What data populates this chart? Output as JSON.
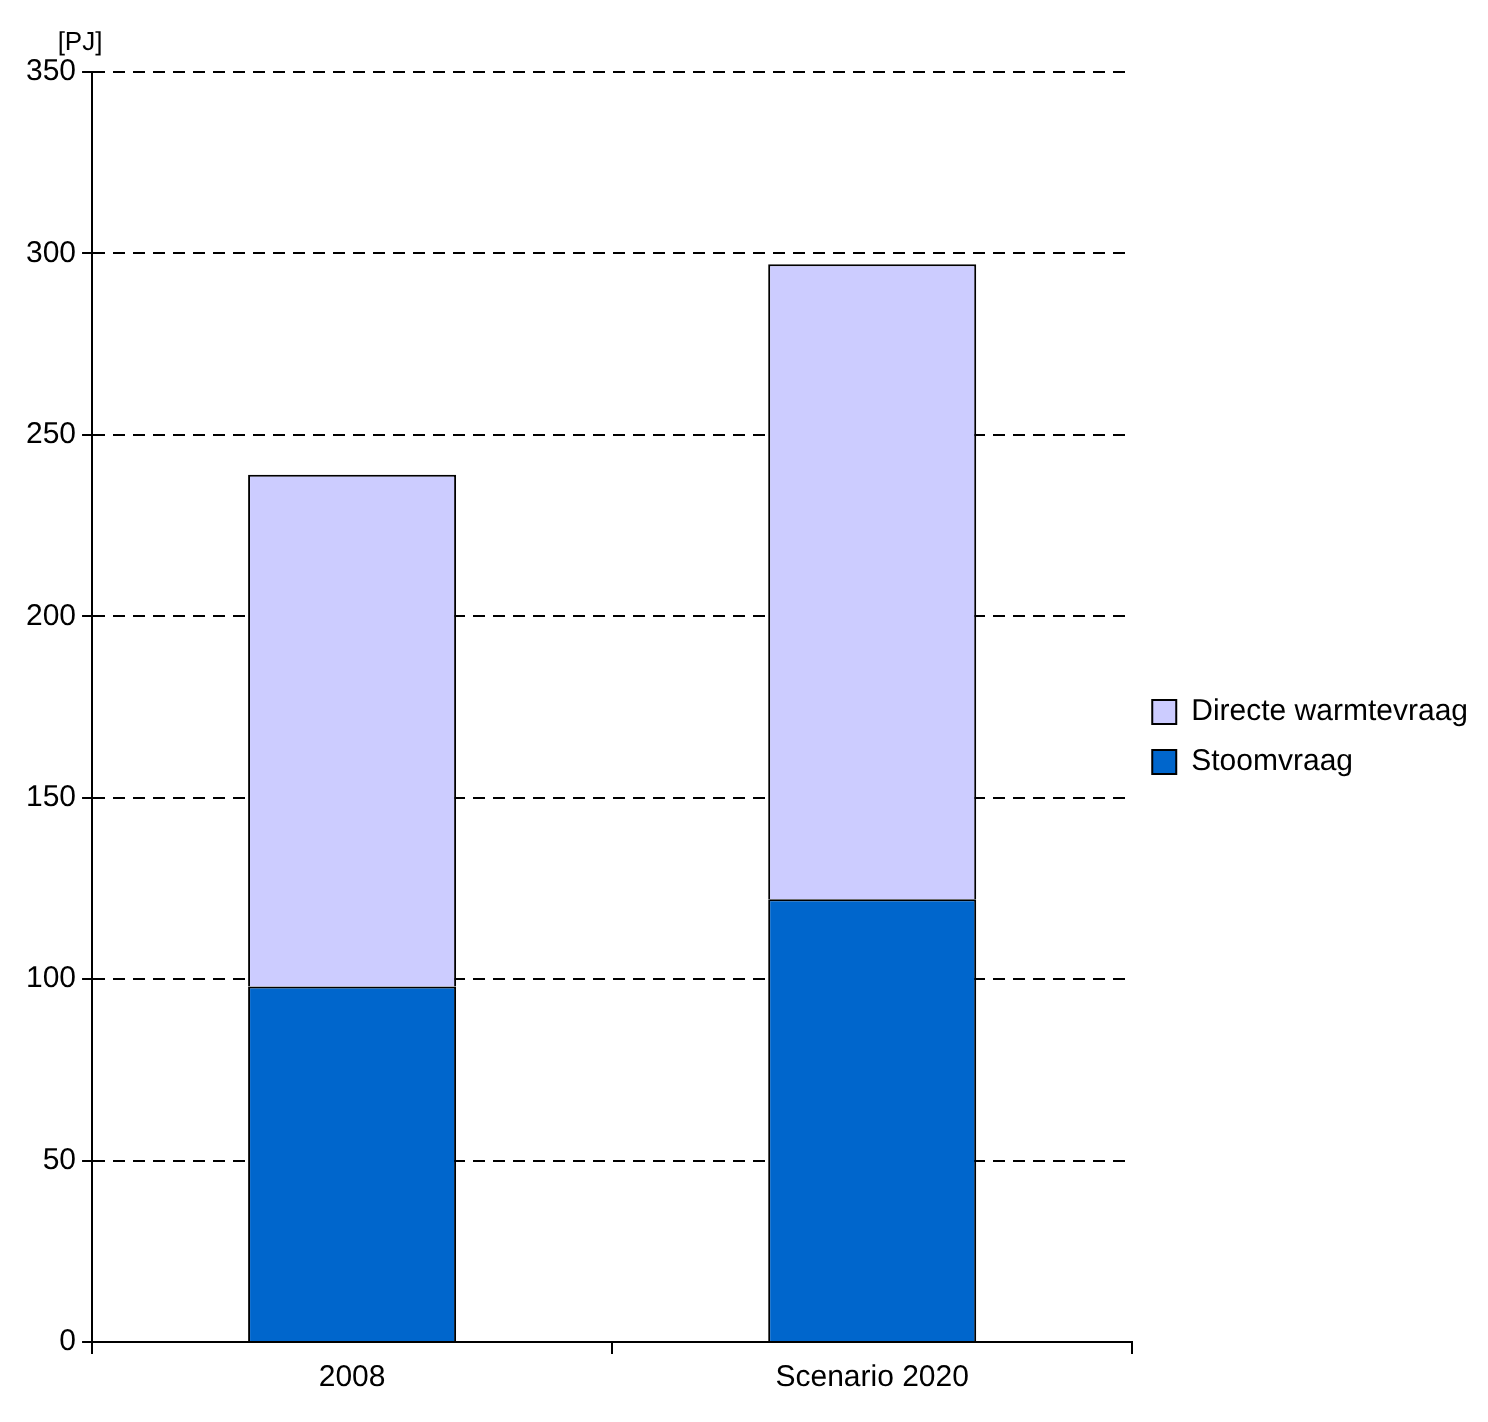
{
  "chart_data": {
    "type": "bar",
    "stacked": true,
    "ylabel": "[PJ]",
    "categories": [
      "2008",
      "Scenario 2020"
    ],
    "series": [
      {
        "name": "Stoomvraag",
        "color": "#0066cc",
        "values": [
          98,
          122
        ]
      },
      {
        "name": "Directe warmtevraag",
        "color": "#ccccff",
        "values": [
          141,
          175
        ]
      }
    ],
    "ylim": [
      0,
      350
    ],
    "yticks": [
      0,
      50,
      100,
      150,
      200,
      250,
      300,
      350
    ],
    "grid": "y",
    "legend": "right"
  }
}
